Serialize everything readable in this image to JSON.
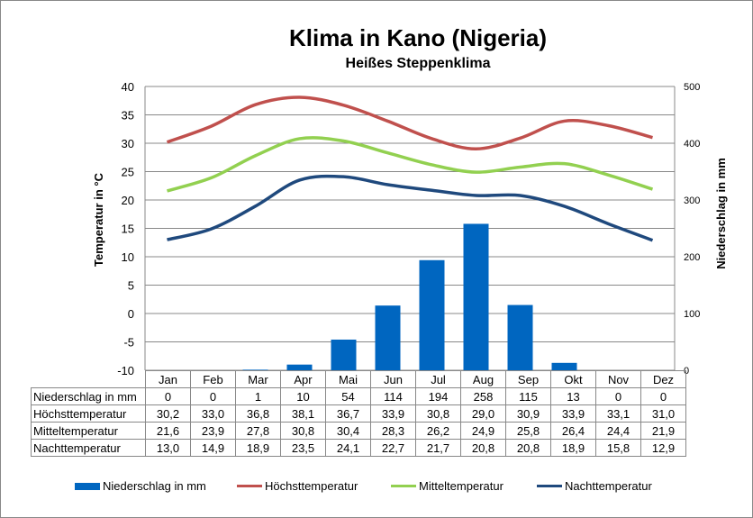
{
  "chart_data": {
    "type": "bar+line",
    "title": "Klima in Kano (Nigeria)",
    "subtitle": "Heißes Steppenklima",
    "ylabel": "Temperatur in °C",
    "y2label": "Niederschlag in mm",
    "ylim": [
      -10,
      40
    ],
    "y2lim": [
      0,
      500
    ],
    "yticks": [
      "40",
      "35",
      "30",
      "25",
      "20",
      "15",
      "10",
      "5",
      "0",
      "-5",
      "-10"
    ],
    "y2ticks": [
      "500",
      "400",
      "300",
      "200",
      "100",
      "0"
    ],
    "categories": [
      "Jan",
      "Feb",
      "Mar",
      "Apr",
      "Mai",
      "Jun",
      "Jul",
      "Aug",
      "Sep",
      "Okt",
      "Nov",
      "Dez"
    ],
    "series": [
      {
        "name": "Niederschlag in mm",
        "kind": "bar",
        "axis": "right",
        "color": "#0066c0",
        "values": [
          0,
          0,
          1,
          10,
          54,
          114,
          194,
          258,
          115,
          13,
          0,
          0
        ],
        "labels": [
          "0",
          "0",
          "1",
          "10",
          "54",
          "114",
          "194",
          "258",
          "115",
          "13",
          "0",
          "0"
        ]
      },
      {
        "name": "Höchsttemperatur",
        "kind": "line",
        "axis": "left",
        "color": "#c0504d",
        "values": [
          30.2,
          33.0,
          36.8,
          38.1,
          36.7,
          33.9,
          30.8,
          29.0,
          30.9,
          33.9,
          33.1,
          31.0
        ],
        "labels": [
          "30,2",
          "33,0",
          "36,8",
          "38,1",
          "36,7",
          "33,9",
          "30,8",
          "29,0",
          "30,9",
          "33,9",
          "33,1",
          "31,0"
        ]
      },
      {
        "name": "Mitteltemperatur",
        "kind": "line",
        "axis": "left",
        "color": "#92d050",
        "values": [
          21.6,
          23.9,
          27.8,
          30.8,
          30.4,
          28.3,
          26.2,
          24.9,
          25.8,
          26.4,
          24.4,
          21.9
        ],
        "labels": [
          "21,6",
          "23,9",
          "27,8",
          "30,8",
          "30,4",
          "28,3",
          "26,2",
          "24,9",
          "25,8",
          "26,4",
          "24,4",
          "21,9"
        ]
      },
      {
        "name": "Nachttemperatur",
        "kind": "line",
        "axis": "left",
        "color": "#1f497d",
        "values": [
          13.0,
          14.9,
          18.9,
          23.5,
          24.1,
          22.7,
          21.7,
          20.8,
          20.8,
          18.9,
          15.8,
          12.9
        ],
        "labels": [
          "13,0",
          "14,9",
          "18,9",
          "23,5",
          "24,1",
          "22,7",
          "21,7",
          "20,8",
          "20,8",
          "18,9",
          "15,8",
          "12,9"
        ]
      }
    ],
    "grid": true,
    "legend": "bottom"
  }
}
